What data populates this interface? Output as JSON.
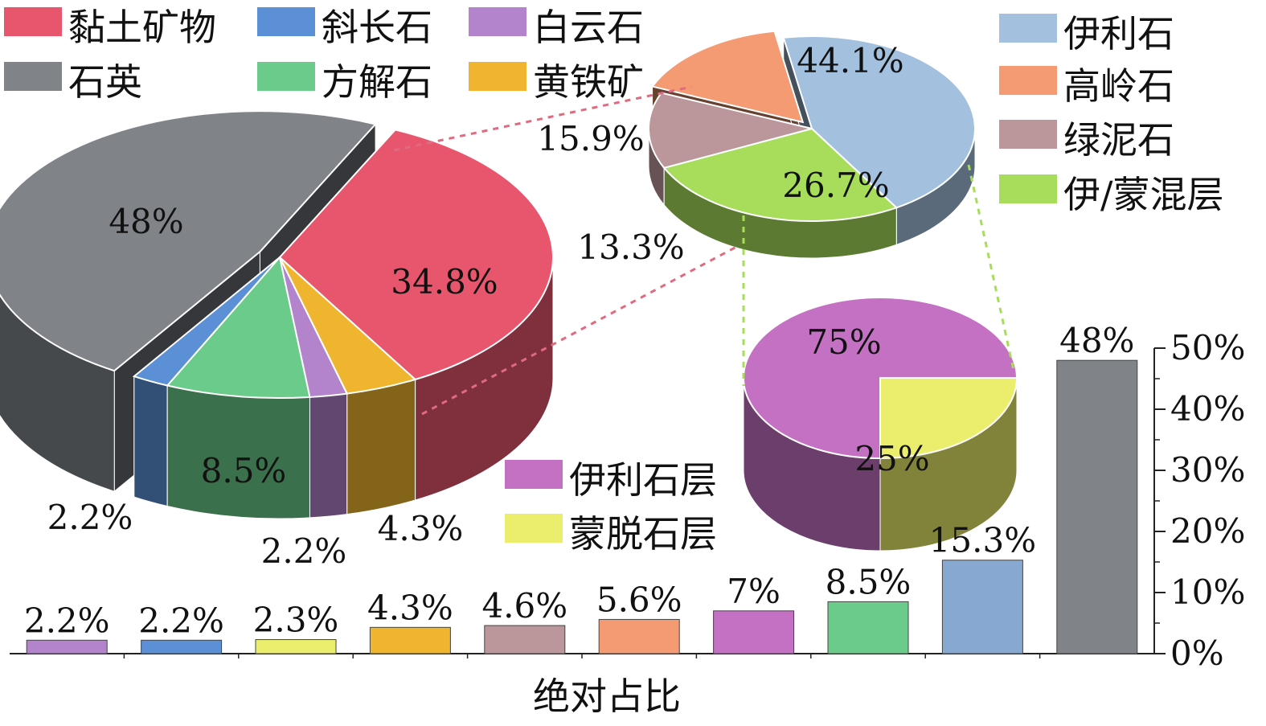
{
  "chart_data": [
    {
      "type": "pie",
      "id": "main",
      "variant": "3d-exploded",
      "slices": [
        {
          "name": "黏土矿物",
          "value": 34.8,
          "label": "34.8%",
          "color": "#E8566E"
        },
        {
          "name": "黄铁矿",
          "value": 4.3,
          "label": "4.3%",
          "color": "#F0B52E"
        },
        {
          "name": "白云石",
          "value": 2.2,
          "label": "2.2%",
          "color": "#B383CC"
        },
        {
          "name": "方解石",
          "value": 8.5,
          "label": "8.5%",
          "color": "#6BCB8A"
        },
        {
          "name": "斜长石",
          "value": 2.2,
          "label": "2.2%",
          "color": "#5B8FD6"
        },
        {
          "name": "石英",
          "value": 48,
          "label": "48%",
          "color": "#808489"
        }
      ]
    },
    {
      "type": "pie",
      "id": "clay",
      "variant": "3d",
      "slices": [
        {
          "name": "伊利石",
          "value": 44.1,
          "label": "44.1%",
          "color": "#A3C0DE"
        },
        {
          "name": "伊/蒙混层",
          "value": 26.7,
          "label": "26.7%",
          "color": "#A7DD5A"
        },
        {
          "name": "绿泥石",
          "value": 13.3,
          "label": "13.3%",
          "color": "#BB979B"
        },
        {
          "name": "高岭石",
          "value": 15.9,
          "label": "15.9%",
          "color": "#F59B73"
        }
      ]
    },
    {
      "type": "pie",
      "id": "mixed",
      "variant": "3d",
      "slices": [
        {
          "name": "伊利石层",
          "value": 75,
          "label": "75%",
          "color": "#C471C4"
        },
        {
          "name": "蒙脱石层",
          "value": 25,
          "label": "25%",
          "color": "#EAEE6C"
        }
      ]
    },
    {
      "type": "bar",
      "id": "absolute",
      "xlabel": "绝对占比",
      "categories": [
        "白云石",
        "斜长石",
        "蒙脱石层",
        "黄铁矿",
        "绿泥石",
        "高岭石",
        "伊利石层",
        "方解石",
        "伊利石",
        "石英"
      ],
      "values": [
        2.2,
        2.2,
        2.3,
        4.3,
        4.6,
        5.6,
        7,
        8.5,
        15.3,
        48
      ],
      "labels": [
        "2.2%",
        "2.2%",
        "2.3%",
        "4.3%",
        "4.6%",
        "5.6%",
        "7%",
        "8.5%",
        "15.3%",
        "48%"
      ],
      "colors": [
        "#B383CC",
        "#5B8FD6",
        "#EAEE6C",
        "#F0B52E",
        "#BB979B",
        "#F59B73",
        "#C471C4",
        "#6BCB8A",
        "#87A9D1",
        "#808489"
      ],
      "ylim": [
        0,
        50
      ],
      "yticks": [
        "0%",
        "10%",
        "20%",
        "30%",
        "40%",
        "50%"
      ],
      "yaxis_side": "right"
    }
  ],
  "legends": {
    "main": [
      {
        "label": "黏土矿物",
        "color": "#E8566E"
      },
      {
        "label": "斜长石",
        "color": "#5B8FD6"
      },
      {
        "label": "白云石",
        "color": "#B383CC"
      },
      {
        "label": "石英",
        "color": "#808489"
      },
      {
        "label": "方解石",
        "color": "#6BCB8A"
      },
      {
        "label": "黄铁矿",
        "color": "#F0B52E"
      }
    ],
    "clay": [
      {
        "label": "伊利石",
        "color": "#A3C0DE"
      },
      {
        "label": "高岭石",
        "color": "#F59B73"
      },
      {
        "label": "绿泥石",
        "color": "#BB979B"
      },
      {
        "label": "伊/蒙混层",
        "color": "#A7DD5A"
      }
    ],
    "mixed": [
      {
        "label": "伊利石层",
        "color": "#C471C4"
      },
      {
        "label": "蒙脱石层",
        "color": "#EAEE6C"
      }
    ]
  },
  "connector_colors": {
    "clay": "#E06A80",
    "mixed": "#A7DD5A"
  }
}
